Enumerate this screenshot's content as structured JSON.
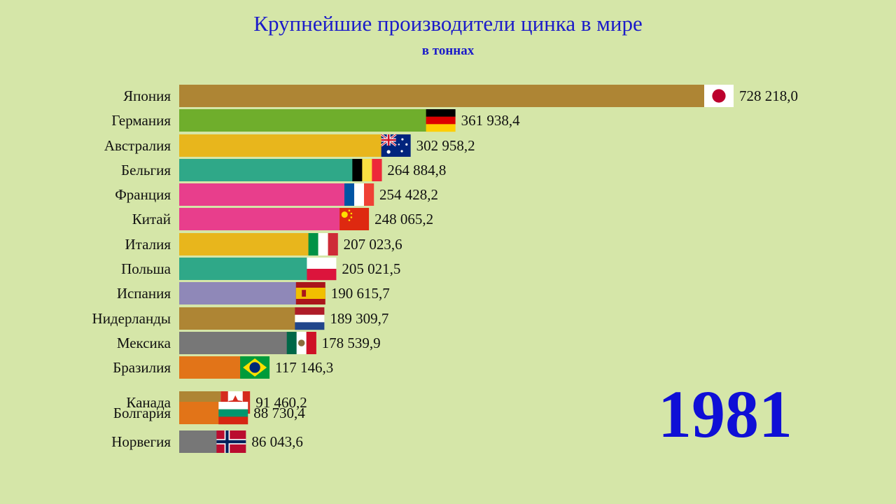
{
  "title": "Крупнейшие производители цинка в мире",
  "subtitle": "в тоннах",
  "year": "1981",
  "chart_data": {
    "type": "bar",
    "orientation": "horizontal",
    "title": "Крупнейшие производители цинка в мире",
    "subtitle": "в тоннах",
    "xlim": [
      0,
      800000
    ],
    "grid": false,
    "legend": "none",
    "categories": [
      "Япония",
      "Германия",
      "Австралия",
      "Бельгия",
      "Франция",
      "Китай",
      "Италия",
      "Польша",
      "Испания",
      "Нидерланды",
      "Мексика",
      "Бразилия",
      "Канада",
      "Болгария",
      "Норвегия"
    ],
    "values": [
      728218.0,
      361938.4,
      302958.2,
      264884.8,
      254428.2,
      248065.2,
      207023.6,
      205021.5,
      190615.7,
      189309.7,
      178539.9,
      117146.3,
      91460.2,
      88730.4,
      86043.6
    ],
    "value_labels": [
      "728 218,0",
      "361 938,4",
      "302 958,2",
      "264 884,8",
      "254 428,2",
      "248 065,2",
      "207 023,6",
      "205 021,5",
      "190 615,7",
      "189 309,7",
      "178 539,9",
      "117 146,3",
      "91 460,2",
      "88 730,4",
      "86 043,6"
    ],
    "bar_colors": [
      "#ae8534",
      "#6fae2c",
      "#e8b61c",
      "#2fa888",
      "#e83e8c",
      "#e83e8c",
      "#e8b61c",
      "#2fa888",
      "#8f88b8",
      "#ae8534",
      "#777777",
      "#e27418",
      "#ae8534",
      "#e27418",
      "#777777"
    ],
    "flags": [
      "japan-flag",
      "germany-flag",
      "australia-flag",
      "belgium-flag",
      "france-flag",
      "china-flag",
      "italy-flag",
      "poland-flag",
      "spain-flag",
      "netherlands-flag",
      "mexico-flag",
      "brazil-flag",
      "canada-flag",
      "bulgaria-flag",
      "norway-flag"
    ]
  }
}
